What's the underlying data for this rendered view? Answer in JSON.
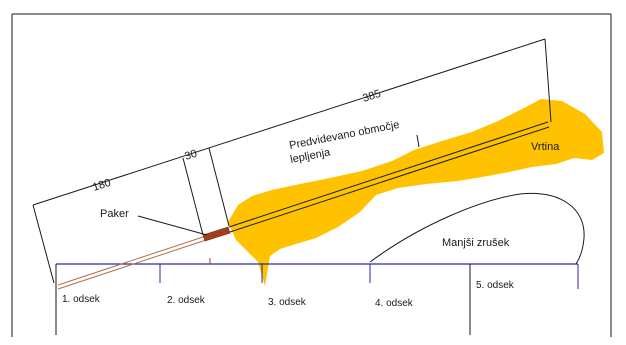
{
  "dimensions": {
    "total": "385",
    "left": "180",
    "middle": "30"
  },
  "labels": {
    "area": [
      "Predvidevano območje",
      "lepljenja"
    ],
    "borehole": "Vrtina",
    "packer": "Paker",
    "collapse": "Manjši zrušek"
  },
  "sections": [
    "1. odsek",
    "2. odsek",
    "3. odsek",
    "4. odsek",
    "5. odsek"
  ],
  "colors": {
    "grout": "#ffc200",
    "tunnel_axis": "#2a2aa8",
    "lines": "#1a1a1a",
    "packer": "#a0401a",
    "pipe": "#b0704a"
  }
}
